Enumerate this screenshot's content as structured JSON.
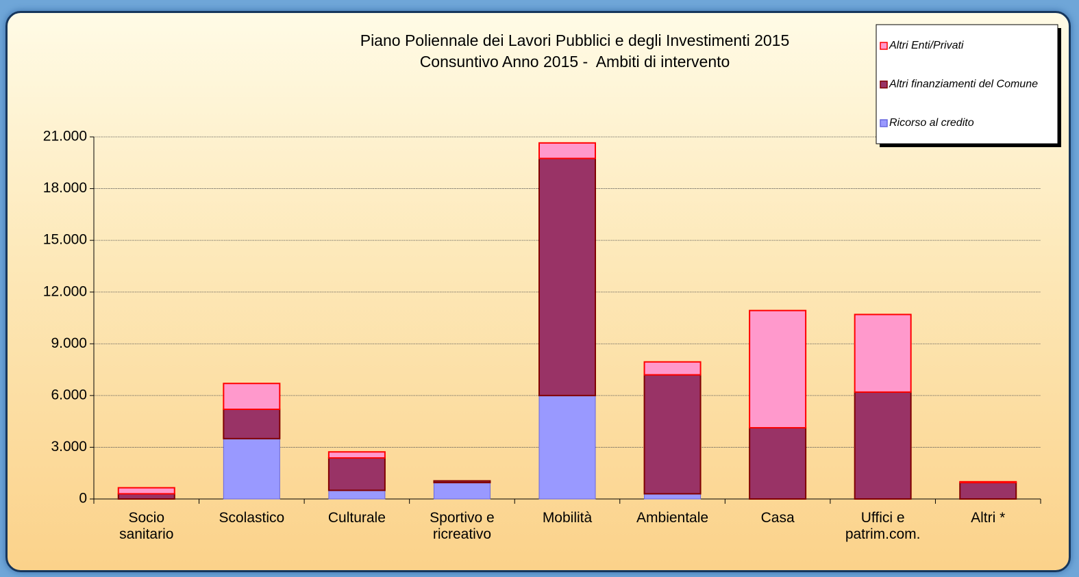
{
  "chart_data": {
    "type": "stacked_bar",
    "title": "Piano Poliennale dei Lavori Pubblici e degli Investimenti 2015",
    "subtitle": "Consuntivo Anno 2015 -  Ambiti di intervento",
    "categories": [
      "Socio sanitario",
      "Scolastico",
      "Culturale",
      "Sportivo e ricreativo",
      "Mobilità",
      "Ambientale",
      "Casa",
      "Uffici e patrim.com.",
      "Altri *"
    ],
    "series": [
      {
        "name": "Ricorso al credito",
        "color": "#9999ff",
        "edge": "#6666dd",
        "values": [
          0,
          3500,
          500,
          950,
          6000,
          300,
          0,
          0,
          0
        ]
      },
      {
        "name": "Altri finanziamenti del Comune",
        "color": "#993366",
        "edge": "#800000",
        "values": [
          300,
          1700,
          1880,
          100,
          13750,
          6900,
          4130,
          6200,
          950
        ]
      },
      {
        "name": "Altri Enti/Privati",
        "color": "#ff99cc",
        "edge": "#ff0000",
        "values": [
          350,
          1500,
          350,
          0,
          900,
          750,
          6800,
          4500,
          50
        ]
      }
    ],
    "ylim": [
      0,
      21000
    ],
    "yticks": [
      0,
      {
        "value": 3000,
        "label": "3.000"
      },
      {
        "value": 6000,
        "label": "6.000"
      },
      {
        "value": 9000,
        "label": "9.000"
      },
      {
        "value": 12000,
        "label": "12.000"
      },
      {
        "value": 15000,
        "label": "15.000"
      },
      {
        "value": 18000,
        "label": "18.000"
      },
      {
        "value": 21000,
        "label": "21.000"
      }
    ],
    "grid": true,
    "legend": "top-right"
  }
}
